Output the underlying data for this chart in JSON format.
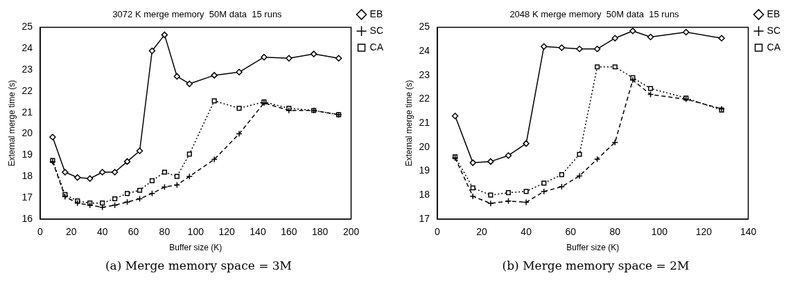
{
  "chart_data": [
    {
      "type": "line",
      "title": "3072 K merge memory  50M data  15 runs",
      "xlabel": "Buffer size (K)",
      "ylabel": "External merge time (s)",
      "annotations": [
        "(a) Merge memory space = 3M"
      ],
      "x": [
        8,
        16,
        24,
        32,
        40,
        48,
        56,
        64,
        72,
        80,
        88,
        96,
        112,
        128,
        144,
        160,
        176,
        192
      ],
      "xlim": [
        0,
        200
      ],
      "xticks": [
        0,
        20,
        40,
        60,
        80,
        100,
        120,
        140,
        160,
        180,
        200
      ],
      "ylim": [
        16,
        25
      ],
      "yticks": [
        16,
        17,
        18,
        19,
        20,
        21,
        22,
        23,
        24,
        25
      ],
      "grid": false,
      "legend": "top right",
      "series": [
        {
          "name": "EB",
          "color": "#000000",
          "marker": "diamond",
          "line_style": "solid",
          "values": [
            19.85,
            18.2,
            17.95,
            17.9,
            18.2,
            18.2,
            18.7,
            19.2,
            23.9,
            24.65,
            22.7,
            22.35,
            22.75,
            22.9,
            23.6,
            23.55,
            23.75,
            23.55
          ]
        },
        {
          "name": "SC",
          "color": "#000000",
          "marker": "cross",
          "line_style": "dashed",
          "values": [
            18.7,
            17.05,
            16.75,
            16.65,
            16.55,
            16.65,
            16.8,
            16.95,
            17.2,
            17.5,
            17.6,
            18.0,
            18.8,
            20.0,
            21.45,
            21.1,
            21.1,
            20.9
          ]
        },
        {
          "name": "CA",
          "color": "#000000",
          "marker": "square",
          "line_style": "dotted",
          "values": [
            18.75,
            17.15,
            16.85,
            16.75,
            16.75,
            16.95,
            17.2,
            17.35,
            17.8,
            18.2,
            18.0,
            19.05,
            21.55,
            21.2,
            21.5,
            21.2,
            21.1,
            20.9
          ]
        }
      ]
    },
    {
      "type": "line",
      "title": "2048 K merge memory  50M data  15 runs",
      "xlabel": "Buffer size (K)",
      "ylabel": "External merge time (s)",
      "annotations": [
        "(b) Merge memory space = 2M"
      ],
      "x": [
        8,
        16,
        24,
        32,
        40,
        48,
        56,
        64,
        72,
        80,
        88,
        96,
        112,
        128
      ],
      "xlim": [
        0,
        140
      ],
      "xticks": [
        0,
        20,
        40,
        60,
        80,
        100,
        120,
        140
      ],
      "ylim": [
        17,
        25
      ],
      "yticks": [
        17,
        18,
        19,
        20,
        21,
        22,
        23,
        24,
        25
      ],
      "grid": false,
      "legend": "top right",
      "series": [
        {
          "name": "EB",
          "color": "#000000",
          "marker": "diamond",
          "line_style": "solid",
          "values": [
            21.3,
            19.35,
            19.4,
            19.65,
            20.15,
            24.2,
            24.15,
            24.1,
            24.1,
            24.55,
            24.85,
            24.6,
            24.8,
            24.55
          ]
        },
        {
          "name": "SC",
          "color": "#000000",
          "marker": "cross",
          "line_style": "dashed",
          "values": [
            19.55,
            17.95,
            17.65,
            17.75,
            17.7,
            18.15,
            18.35,
            18.8,
            19.5,
            20.2,
            22.8,
            22.2,
            22.0,
            21.6
          ]
        },
        {
          "name": "CA",
          "color": "#000000",
          "marker": "square",
          "line_style": "dotted",
          "values": [
            19.6,
            18.3,
            18.0,
            18.1,
            18.15,
            18.5,
            18.85,
            19.7,
            23.35,
            23.35,
            22.9,
            22.45,
            22.05,
            21.55
          ]
        }
      ]
    }
  ]
}
